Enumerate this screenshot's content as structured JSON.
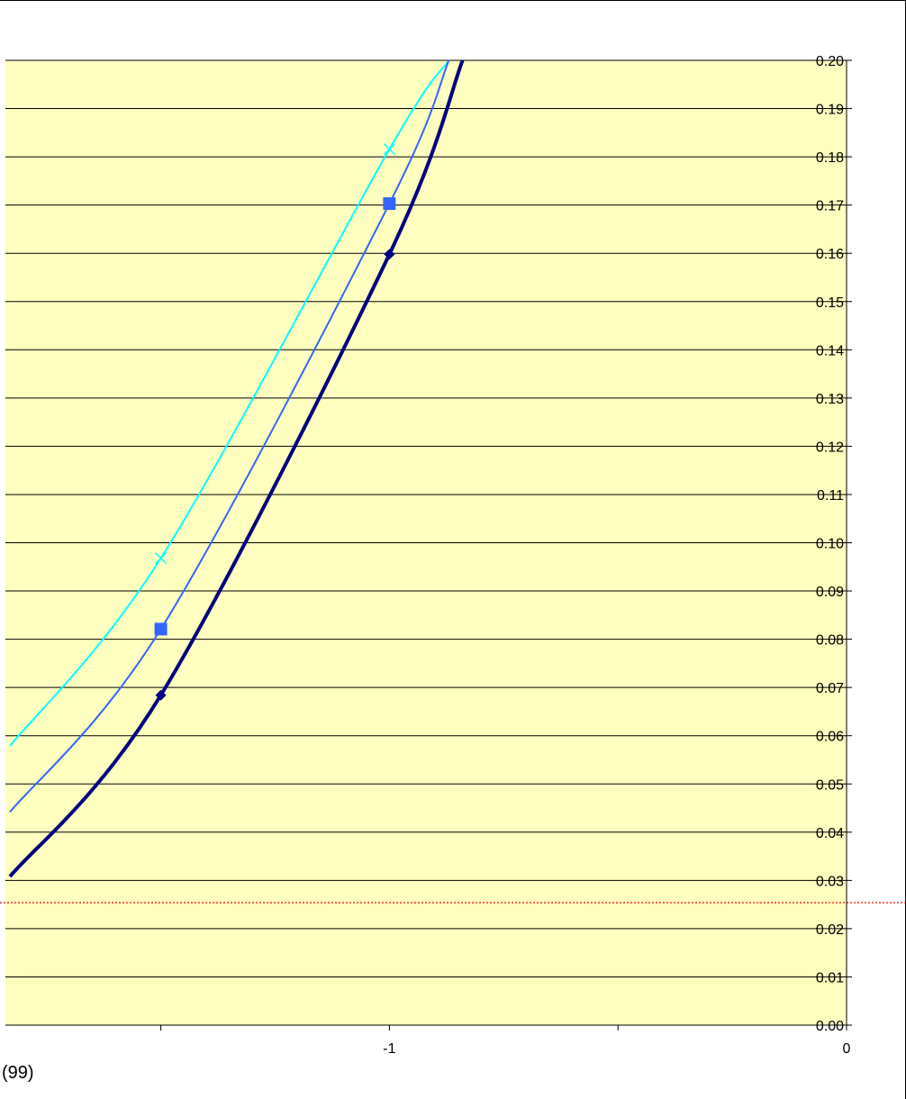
{
  "chart_data": {
    "type": "line",
    "title": "",
    "xlabel": "",
    "ylabel": "",
    "xlim": [
      -1.84,
      0
    ],
    "ylim": [
      0,
      0.2
    ],
    "x_ticks": [
      {
        "value": -1.5,
        "label": ""
      },
      {
        "value": -1,
        "label": "-1"
      },
      {
        "value": -0.5,
        "label": ""
      },
      {
        "value": 0,
        "label": "0"
      }
    ],
    "y_ticks": [
      "0.00",
      "0.01",
      "0.02",
      "0.03",
      "0.04",
      "0.05",
      "0.06",
      "0.07",
      "0.08",
      "0.09",
      "0.10",
      "0.11",
      "0.12",
      "0.13",
      "0.14",
      "0.15",
      "0.16",
      "0.17",
      "0.18",
      "0.19",
      "0.20"
    ],
    "y_axis_side": "right",
    "grid": "horizontal",
    "background_color": "#FFFFC0",
    "reference_line": {
      "y": 0.0254,
      "color": "#FF0000",
      "style": "dotted"
    },
    "series": [
      {
        "color": "#00FFFF",
        "marker": "x",
        "line_width": 2,
        "points": [
          [
            -1.83,
            0.0579
          ],
          [
            -1.5,
            0.0968
          ],
          [
            -1,
            0.1816
          ],
          [
            -0.87,
            0.2
          ]
        ]
      },
      {
        "color": "#3366FF",
        "marker": "square",
        "line_width": 2,
        "points": [
          [
            -1.83,
            0.0442
          ],
          [
            -1.5,
            0.0821
          ],
          [
            -1,
            0.1703
          ],
          [
            -0.87,
            0.2
          ]
        ]
      },
      {
        "color": "#000080",
        "marker": "diamond",
        "line_width": 4,
        "points": [
          [
            -1.83,
            0.0308
          ],
          [
            -1.5,
            0.0684
          ],
          [
            -1,
            0.1598
          ],
          [
            -0.84,
            0.2
          ]
        ]
      }
    ]
  },
  "partial_label": "(99)"
}
